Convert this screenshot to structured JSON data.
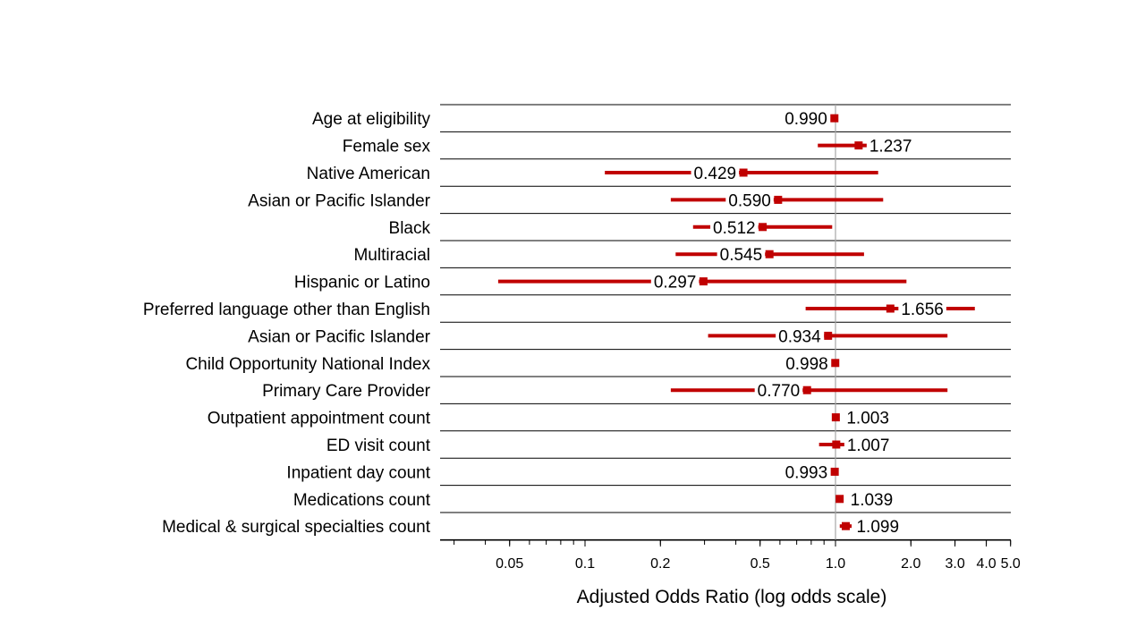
{
  "chart_data": {
    "type": "forest",
    "title": "",
    "xlabel": "Adjusted Odds Ratio (log odds scale)",
    "x_scale": "log",
    "xlim": [
      0.025,
      5.0
    ],
    "x_ticks": [
      {
        "value": 0.05,
        "label": "0.05"
      },
      {
        "value": 0.1,
        "label": "0.1"
      },
      {
        "value": 0.2,
        "label": "0.2"
      },
      {
        "value": 0.5,
        "label": "0.5"
      },
      {
        "value": 1.0,
        "label": "1.0"
      },
      {
        "value": 2.0,
        "label": "2.0"
      },
      {
        "value": 3.0,
        "label": "3.0"
      },
      {
        "value": 4.0,
        "label": "4.0"
      },
      {
        "value": 5.0,
        "label": "5.0"
      }
    ],
    "reference_line": 1.0,
    "marker_color": "#c00000",
    "rows": [
      {
        "label": "Age at eligibility",
        "or": 0.99,
        "lo": 0.975,
        "hi": 1.005,
        "or_label": "0.990"
      },
      {
        "label": "Female sex",
        "or": 1.237,
        "lo": 0.85,
        "hi": 1.78,
        "or_label": "1.237"
      },
      {
        "label": "Native American",
        "or": 0.429,
        "lo": 0.12,
        "hi": 1.48,
        "or_label": "0.429"
      },
      {
        "label": "Asian or Pacific Islander",
        "or": 0.59,
        "lo": 0.22,
        "hi": 1.55,
        "or_label": "0.590"
      },
      {
        "label": "Black",
        "or": 0.512,
        "lo": 0.27,
        "hi": 0.97,
        "or_label": "0.512"
      },
      {
        "label": "Multiracial",
        "or": 0.545,
        "lo": 0.23,
        "hi": 1.3,
        "or_label": "0.545"
      },
      {
        "label": "Hispanic or Latino",
        "or": 0.297,
        "lo": 0.045,
        "hi": 1.92,
        "or_label": "0.297"
      },
      {
        "label": "Preferred language other than English",
        "or": 1.656,
        "lo": 0.76,
        "hi": 3.6,
        "or_label": "1.656"
      },
      {
        "label": "Asian or Pacific Islander",
        "or": 0.934,
        "lo": 0.31,
        "hi": 2.8,
        "or_label": "0.934"
      },
      {
        "label": "Child Opportunity National Index",
        "or": 0.998,
        "lo": 0.985,
        "hi": 1.012,
        "or_label": "0.998"
      },
      {
        "label": "Primary Care Provider",
        "or": 0.77,
        "lo": 0.22,
        "hi": 2.8,
        "or_label": "0.770"
      },
      {
        "label": "Outpatient appointment count",
        "or": 1.003,
        "lo": 0.99,
        "hi": 1.016,
        "or_label": "1.003"
      },
      {
        "label": "ED visit count",
        "or": 1.007,
        "lo": 0.86,
        "hi": 1.18,
        "or_label": "1.007"
      },
      {
        "label": "Inpatient day count",
        "or": 0.993,
        "lo": 0.975,
        "hi": 1.012,
        "or_label": "0.993"
      },
      {
        "label": "Medications count",
        "or": 1.039,
        "lo": 1.02,
        "hi": 1.06,
        "or_label": "1.039"
      },
      {
        "label": "Medical & surgical specialties count",
        "or": 1.099,
        "lo": 1.04,
        "hi": 1.16,
        "or_label": "1.099"
      }
    ]
  }
}
